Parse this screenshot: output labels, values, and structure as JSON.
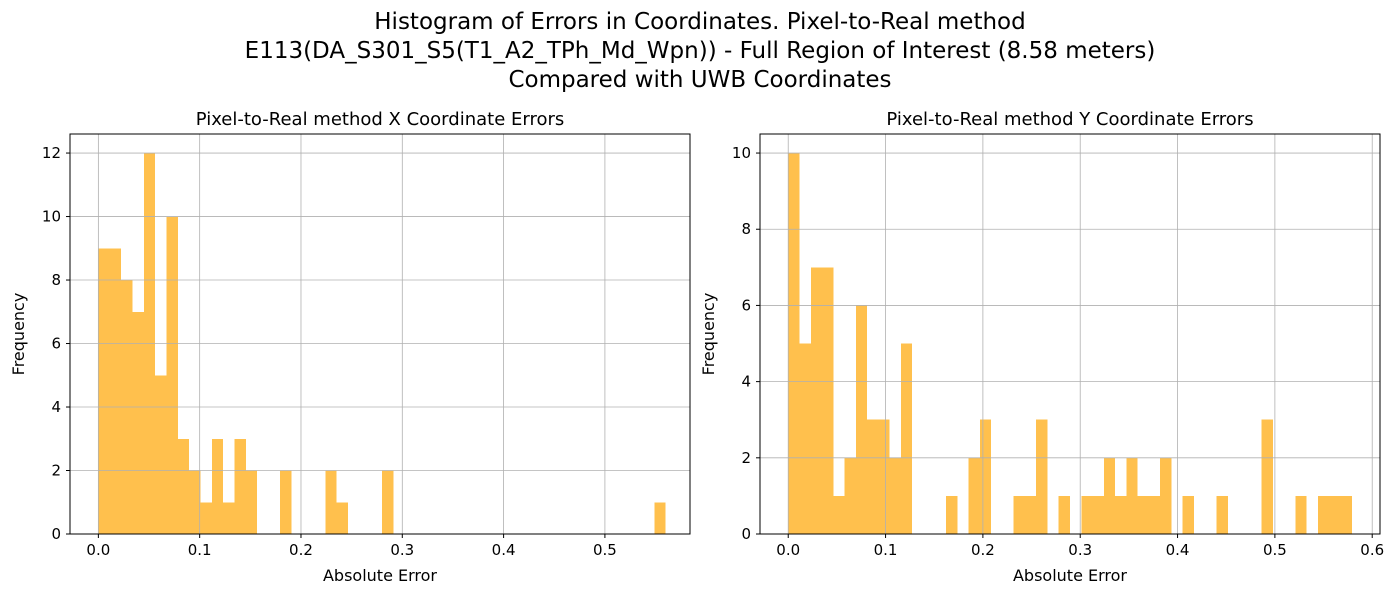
{
  "figure": {
    "title_lines": [
      "Histogram of Errors in Coordinates. Pixel-to-Real method",
      "E113(DA_S301_S5(T1_A2_TPh_Md_Wpn)) - Full Region of Interest (8.58 meters)",
      "Compared with UWB Coordinates"
    ]
  },
  "colors": {
    "bar": "#ffc04d",
    "grid": "#b0b0b0",
    "axis": "#000000"
  },
  "chart_data": [
    {
      "type": "bar",
      "title": "Pixel-to-Real method X Coordinate Errors",
      "xlabel": "Absolute Error",
      "ylabel": "Frequency",
      "xlim": [
        -0.028,
        0.584
      ],
      "ylim": [
        0,
        12.6
      ],
      "xticks": [
        0.0,
        0.1,
        0.2,
        0.3,
        0.4,
        0.5
      ],
      "xtick_labels": [
        "0.0",
        "0.1",
        "0.2",
        "0.3",
        "0.4",
        "0.5"
      ],
      "yticks": [
        0,
        2,
        4,
        6,
        8,
        10,
        12
      ],
      "ytick_labels": [
        "0",
        "2",
        "4",
        "6",
        "8",
        "10",
        "12"
      ],
      "grid": true,
      "bin_start": 0.0,
      "bin_width": 0.0112,
      "values": [
        9,
        9,
        8,
        7,
        12,
        5,
        10,
        3,
        2,
        1,
        3,
        1,
        3,
        2,
        0,
        0,
        2,
        0,
        0,
        0,
        2,
        1,
        0,
        0,
        0,
        2,
        0,
        0,
        0,
        0,
        0,
        0,
        0,
        0,
        0,
        0,
        0,
        0,
        0,
        0,
        0,
        0,
        0,
        0,
        0,
        0,
        0,
        0,
        0,
        1
      ]
    },
    {
      "type": "bar",
      "title": "Pixel-to-Real method Y Coordinate Errors",
      "xlabel": "Absolute Error",
      "ylabel": "Frequency",
      "xlim": [
        -0.029,
        0.608
      ],
      "ylim": [
        0,
        10.5
      ],
      "xticks": [
        0.0,
        0.1,
        0.2,
        0.3,
        0.4,
        0.5,
        0.6
      ],
      "xtick_labels": [
        "0.0",
        "0.1",
        "0.2",
        "0.3",
        "0.4",
        "0.5",
        "0.6"
      ],
      "yticks": [
        0,
        2,
        4,
        6,
        8,
        10
      ],
      "ytick_labels": [
        "0",
        "2",
        "4",
        "6",
        "8",
        "10"
      ],
      "grid": true,
      "bin_start": 0.0,
      "bin_width": 0.01158,
      "values": [
        10,
        5,
        7,
        7,
        1,
        2,
        6,
        3,
        3,
        2,
        5,
        0,
        0,
        0,
        1,
        0,
        2,
        3,
        0,
        0,
        1,
        1,
        3,
        0,
        1,
        0,
        1,
        1,
        2,
        1,
        2,
        1,
        1,
        2,
        0,
        1,
        0,
        0,
        1,
        0,
        0,
        0,
        3,
        0,
        0,
        1,
        0,
        1,
        1,
        1
      ]
    }
  ]
}
